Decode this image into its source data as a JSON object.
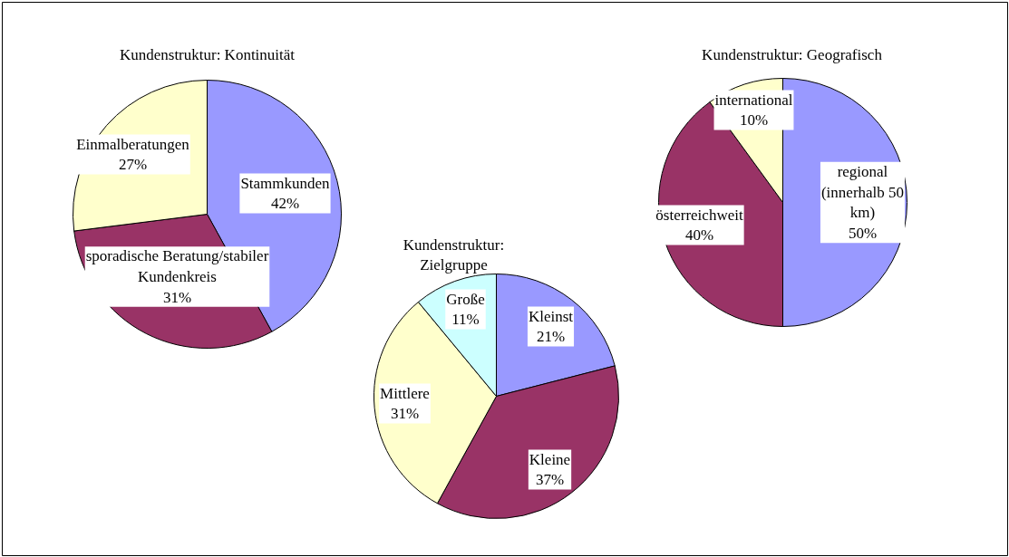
{
  "chart_data": [
    {
      "type": "pie",
      "title": "Kundenstruktur: Kontinuität",
      "categories": [
        "Stammkunden",
        "sporadische Beratung/stabiler Kundenkreis",
        "Einmalberatungen"
      ],
      "values": [
        42,
        31,
        27
      ],
      "colors": [
        "#9999ff",
        "#993366",
        "#ffffcc"
      ],
      "value_labels": [
        "42%",
        "31%",
        "27%"
      ]
    },
    {
      "type": "pie",
      "title": "Kundenstruktur: Geografisch",
      "categories": [
        "regional (innerhalb 50 km)",
        "österreichweit",
        "international"
      ],
      "values": [
        50,
        40,
        10
      ],
      "colors": [
        "#9999ff",
        "#993366",
        "#ffffcc"
      ],
      "value_labels": [
        "50%",
        "40%",
        "10%"
      ]
    },
    {
      "type": "pie",
      "title": "Kundenstruktur: Zielgruppe",
      "categories": [
        "Kleinst",
        "Kleine",
        "Mittlere",
        "Große"
      ],
      "values": [
        21,
        37,
        31,
        11
      ],
      "colors": [
        "#9999ff",
        "#993366",
        "#ffffcc",
        "#ccffff"
      ],
      "value_labels": [
        "21%",
        "37%",
        "31%",
        "11%"
      ]
    }
  ]
}
